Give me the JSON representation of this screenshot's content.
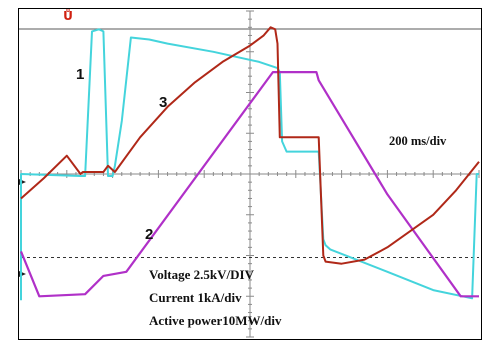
{
  "chart_data": {
    "type": "line",
    "title": "",
    "time_scale_label": "200 ms/div",
    "scale_labels": [
      "Voltage 2.5kV/DIV",
      "Current 1kA/div",
      "Active power10MW/div"
    ],
    "trace_markers": [
      "1",
      "2",
      "3"
    ],
    "grid": true,
    "colors": {
      "trace1": "#44d4dc",
      "trace2": "#b030c8",
      "trace3": "#b02818",
      "grid": "#8a8a8a",
      "trigger_marker": "#d02010"
    },
    "x_unit": "div",
    "y_unit": "div",
    "xlim": [
      0,
      10
    ],
    "ylim": [
      -4,
      4
    ],
    "series": [
      {
        "marker": "1",
        "color": "#44d4dc",
        "x": [
          0,
          0.0,
          1.3,
          1.4,
          1.55,
          1.7,
          1.8,
          1.9,
          2.0,
          2.05,
          2.2,
          2.4,
          2.8,
          3.2,
          4.2,
          5.2,
          5.6,
          5.65,
          5.7,
          5.8,
          6.5,
          6.6,
          6.65,
          6.75,
          8.0,
          9.0,
          9.85,
          9.95,
          10
        ],
        "y": [
          -3.1,
          0,
          -0.05,
          -0.05,
          3.5,
          3.55,
          3.5,
          -0.05,
          -0.05,
          0.2,
          1.3,
          3.35,
          3.3,
          3.2,
          3.0,
          2.75,
          2.6,
          2.5,
          0.8,
          0.55,
          0.55,
          -1.6,
          -1.75,
          -1.85,
          -2.4,
          -2.85,
          -3.05,
          0.0,
          0.0
        ]
      },
      {
        "marker": "2",
        "color": "#b030c8",
        "x": [
          0,
          0.4,
          1.4,
          1.8,
          2.3,
          5.5,
          6.45,
          6.5,
          8.0,
          9.6,
          10
        ],
        "y": [
          -1.9,
          -3.0,
          -2.95,
          -2.5,
          -2.4,
          2.5,
          2.5,
          2.3,
          -0.5,
          -3.0,
          -3.0
        ]
      },
      {
        "marker": "3",
        "color": "#b02818",
        "x": [
          0,
          0.5,
          1.0,
          1.3,
          1.35,
          1.8,
          1.9,
          2.05,
          2.6,
          3.2,
          3.8,
          4.4,
          5.0,
          5.3,
          5.45,
          5.55,
          5.6,
          5.65,
          6.5,
          6.6,
          6.65,
          7.0,
          7.5,
          8.0,
          8.5,
          9.0,
          9.5,
          10
        ],
        "y": [
          -0.6,
          -0.1,
          0.45,
          0.0,
          0.05,
          0.05,
          0.2,
          0.05,
          0.9,
          1.65,
          2.25,
          2.75,
          3.15,
          3.4,
          3.6,
          3.55,
          3.2,
          0.9,
          0.9,
          -2.0,
          -2.15,
          -2.2,
          -2.1,
          -1.8,
          -1.4,
          -1.0,
          -0.4,
          0.3
        ]
      }
    ]
  }
}
